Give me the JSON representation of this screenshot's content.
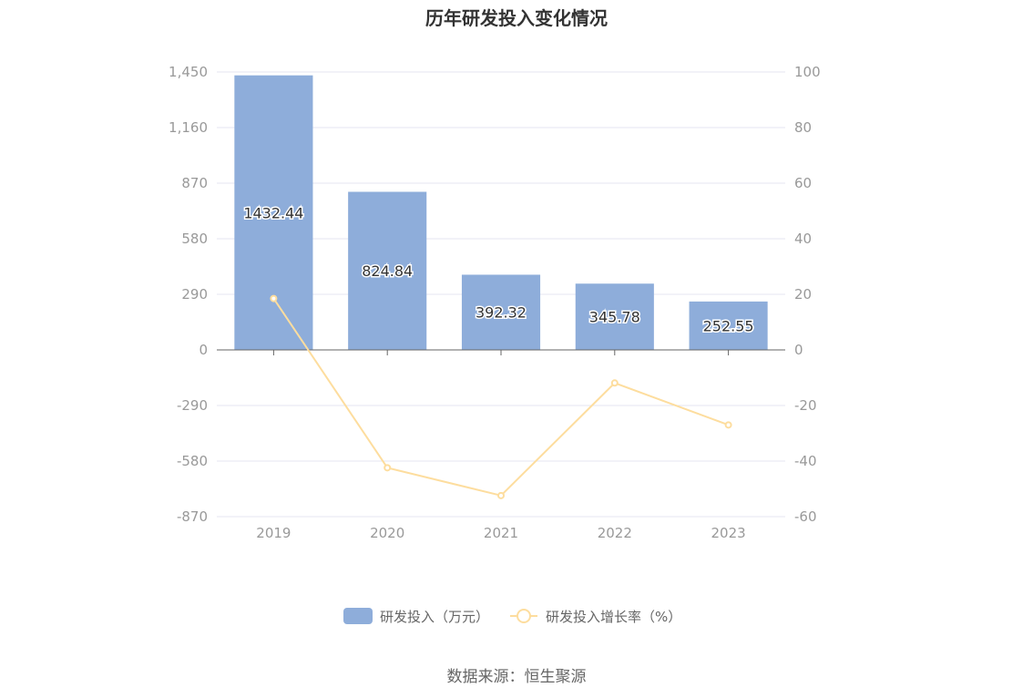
{
  "title": "历年研发投入变化情况",
  "source": "数据来源：恒生聚源",
  "colors": {
    "bar": "#8eadda",
    "line": "#fddd9e",
    "grid": "#e6e6f0",
    "axis": "#666666"
  },
  "chart_data": {
    "type": "bar",
    "categories": [
      "2019",
      "2020",
      "2021",
      "2022",
      "2023"
    ],
    "series": [
      {
        "name": "研发投入（万元）",
        "type": "bar",
        "axis": "left",
        "values": [
          1432.44,
          824.84,
          392.32,
          345.78,
          252.55
        ],
        "labels": [
          "1432.44",
          "824.84",
          "392.32",
          "345.78",
          "252.55"
        ]
      },
      {
        "name": "研发投入增长率（%）",
        "type": "line",
        "axis": "right",
        "values": [
          18.5,
          -42.4,
          -52.4,
          -11.9,
          -27.0
        ]
      }
    ],
    "y_left": {
      "ylim": [
        -870,
        1450
      ],
      "ticks": [
        1450,
        1160,
        870,
        580,
        290,
        0,
        -290,
        -580,
        -870
      ],
      "tick_labels": [
        "1,450",
        "1,160",
        "870",
        "580",
        "290",
        "0",
        "-290",
        "-580",
        "-870"
      ]
    },
    "y_right": {
      "ylim": [
        -60,
        100
      ],
      "ticks": [
        100,
        80,
        60,
        40,
        20,
        0,
        -20,
        -40,
        -60
      ],
      "tick_labels": [
        "100",
        "80",
        "60",
        "40",
        "20",
        "0",
        "-20",
        "-40",
        "-60"
      ]
    },
    "grid": true,
    "legend": "bottom-center"
  }
}
